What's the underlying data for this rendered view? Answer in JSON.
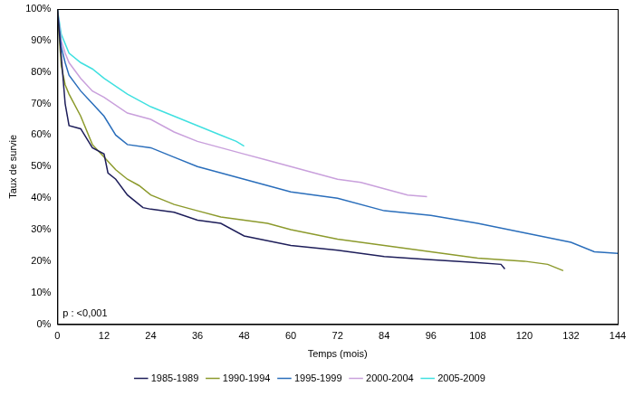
{
  "chart_data": {
    "type": "line",
    "x_label": "Temps (mois)",
    "y_label": "Taux de survie",
    "annotation": "p : <0,001",
    "legend": "bottom",
    "grid": false,
    "marker": "none",
    "xlim": [
      0,
      144
    ],
    "xticks": [
      0,
      12,
      24,
      36,
      48,
      60,
      72,
      84,
      96,
      108,
      120,
      132,
      144
    ],
    "ylim": [
      0,
      100
    ],
    "yticks": [
      {
        "value": 0,
        "label": "0%"
      },
      {
        "value": 10,
        "label": "10%"
      },
      {
        "value": 20,
        "label": "20%"
      },
      {
        "value": 30,
        "label": "30%"
      },
      {
        "value": 40,
        "label": "40%"
      },
      {
        "value": 50,
        "label": "50%"
      },
      {
        "value": 60,
        "label": "60%"
      },
      {
        "value": 70,
        "label": "70%"
      },
      {
        "value": 80,
        "label": "80%"
      },
      {
        "value": 90,
        "label": "90%"
      },
      {
        "value": 100,
        "label": "100%"
      }
    ],
    "series": [
      {
        "name": "1985-1989",
        "color": "#1e1e5a",
        "x": [
          0,
          1,
          2,
          3,
          6,
          9,
          12,
          13,
          15,
          18,
          21,
          22,
          24,
          30,
          36,
          42,
          48,
          54,
          60,
          72,
          84,
          96,
          108,
          114,
          115
        ],
        "values": [
          100,
          85,
          70,
          63,
          62,
          56,
          54,
          48,
          46,
          41,
          38,
          37,
          36.5,
          35.5,
          33,
          32,
          28,
          26.5,
          25,
          23.5,
          21.5,
          20.5,
          19.5,
          19,
          17.5
        ]
      },
      {
        "name": "1990-1994",
        "color": "#8c9a2c",
        "x": [
          0,
          1,
          2,
          3,
          6,
          9,
          12,
          15,
          18,
          21,
          24,
          30,
          36,
          42,
          48,
          54,
          60,
          72,
          84,
          96,
          108,
          120,
          126,
          130
        ],
        "values": [
          100,
          82,
          76,
          73,
          66,
          57,
          53,
          49,
          46,
          44,
          41,
          38,
          36,
          34,
          33,
          32,
          30,
          27,
          25,
          23,
          21,
          20,
          19,
          17
        ]
      },
      {
        "name": "1995-1999",
        "color": "#2a6ebb",
        "x": [
          0,
          1,
          2,
          3,
          6,
          9,
          12,
          15,
          18,
          24,
          30,
          36,
          42,
          48,
          54,
          60,
          72,
          84,
          96,
          108,
          120,
          132,
          138,
          144
        ],
        "values": [
          100,
          88,
          83,
          79,
          74,
          70,
          66,
          60,
          57,
          56,
          53,
          50,
          48,
          46,
          44,
          42,
          40,
          36,
          34.5,
          32,
          29,
          26,
          23,
          22.5
        ]
      },
      {
        "name": "2000-2004",
        "color": "#c9a0dc",
        "x": [
          0,
          1,
          2,
          3,
          6,
          9,
          12,
          18,
          24,
          30,
          36,
          42,
          48,
          54,
          60,
          66,
          72,
          78,
          84,
          90,
          95
        ],
        "values": [
          100,
          90,
          86,
          83,
          78,
          74,
          72,
          67,
          65,
          61,
          58,
          56,
          54,
          52,
          50,
          48,
          46,
          45,
          43,
          41,
          40.5
        ]
      },
      {
        "name": "2005-2009",
        "color": "#40e0e0",
        "x": [
          0,
          1,
          2,
          3,
          6,
          9,
          12,
          18,
          24,
          30,
          36,
          42,
          46,
          48
        ],
        "values": [
          100,
          92,
          89,
          86,
          83,
          81,
          78,
          73,
          69,
          66,
          63,
          60,
          58,
          56.5
        ]
      }
    ]
  }
}
